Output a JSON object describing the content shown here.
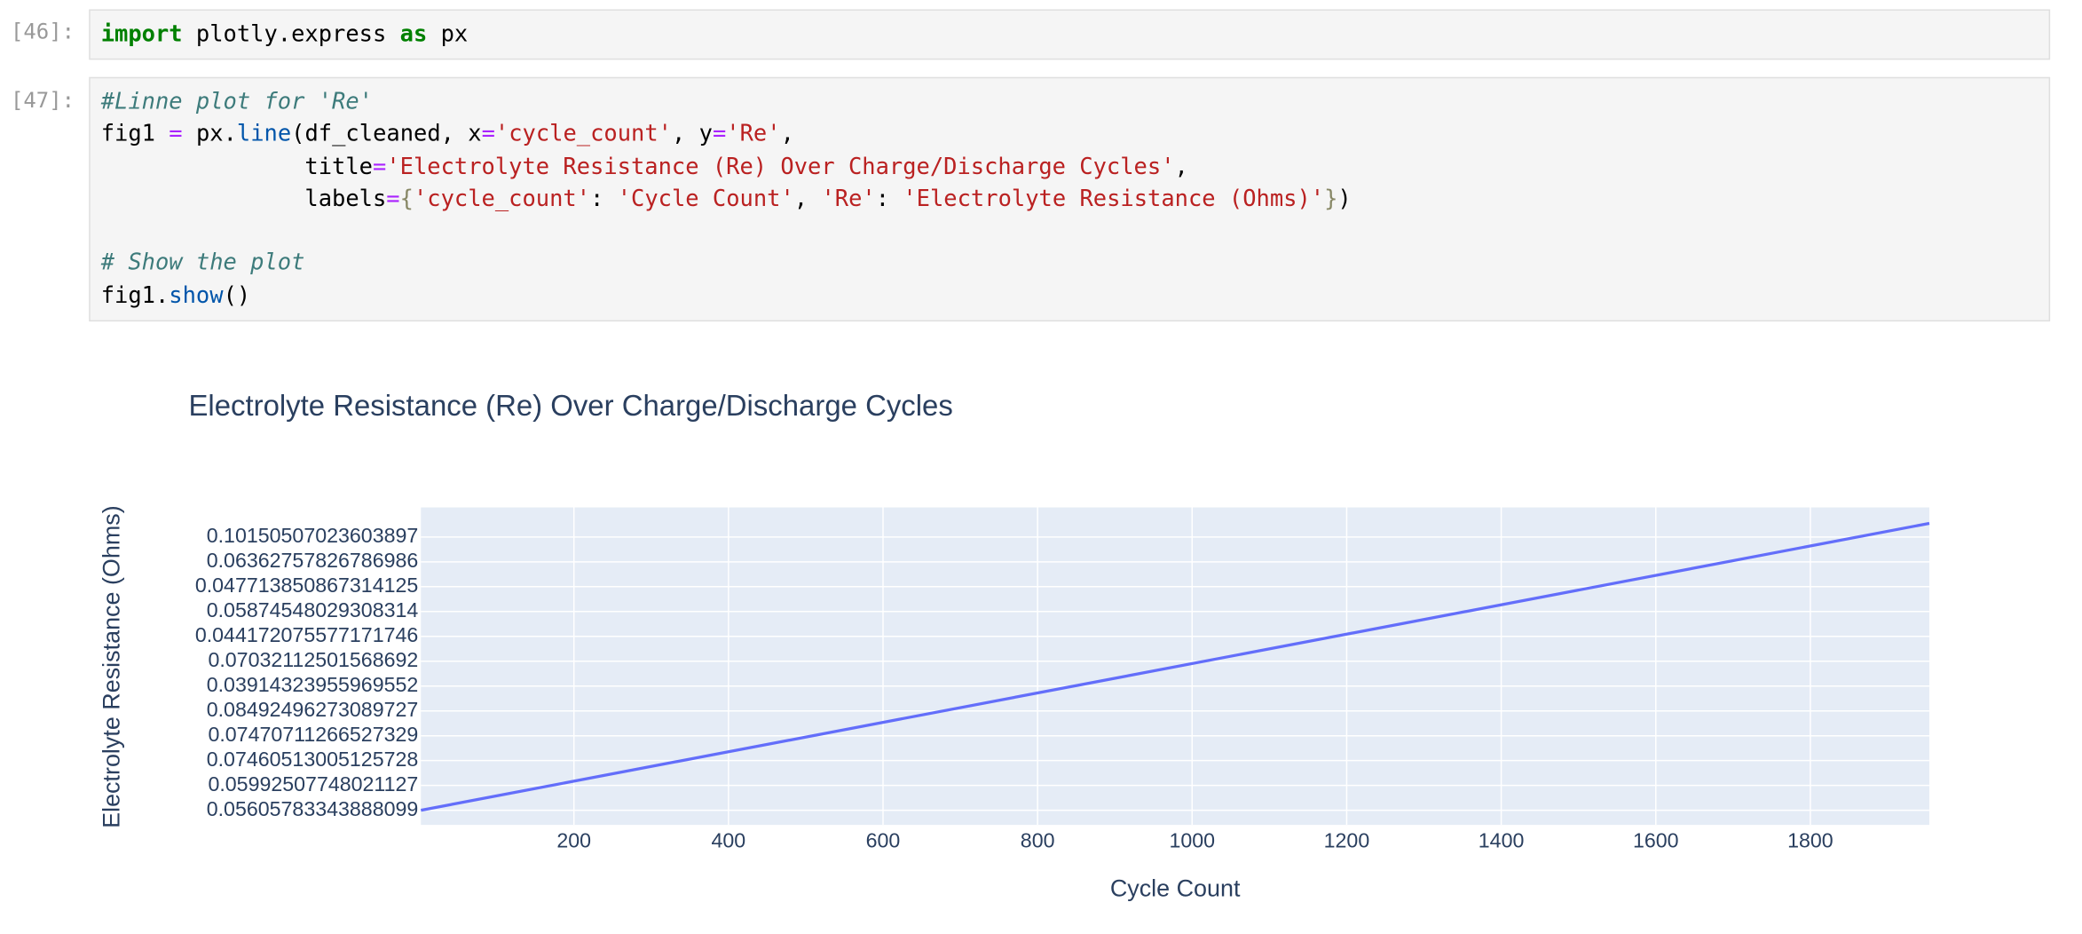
{
  "cells": [
    {
      "prompt": "[46]:",
      "lines": [
        [
          {
            "text": "import",
            "color": "#008000",
            "weight": "bold"
          },
          {
            "text": " plotly.express ",
            "color": "#000000"
          },
          {
            "text": "as",
            "color": "#008000",
            "weight": "bold"
          },
          {
            "text": " px",
            "color": "#000000"
          }
        ]
      ]
    },
    {
      "prompt": "[47]:",
      "lines": [
        [
          {
            "text": "#Linne plot for 'Re'",
            "color": "#3d7b7b",
            "style": "italic"
          }
        ],
        [
          {
            "text": "fig1 ",
            "color": "#000000"
          },
          {
            "text": "=",
            "color": "#aa22ff"
          },
          {
            "text": " px.",
            "color": "#000000"
          },
          {
            "text": "line",
            "color": "#0055aa"
          },
          {
            "text": "(df_cleaned, x",
            "color": "#000000"
          },
          {
            "text": "=",
            "color": "#aa22ff"
          },
          {
            "text": "'cycle_count'",
            "color": "#ba2121"
          },
          {
            "text": ", y",
            "color": "#000000"
          },
          {
            "text": "=",
            "color": "#aa22ff"
          },
          {
            "text": "'Re'",
            "color": "#ba2121"
          },
          {
            "text": ",",
            "color": "#000000"
          }
        ],
        [
          {
            "text": "               title",
            "color": "#000000"
          },
          {
            "text": "=",
            "color": "#aa22ff"
          },
          {
            "text": "'Electrolyte Resistance (Re) Over Charge/Discharge Cycles'",
            "color": "#ba2121"
          },
          {
            "text": ",",
            "color": "#000000"
          }
        ],
        [
          {
            "text": "               labels",
            "color": "#000000"
          },
          {
            "text": "=",
            "color": "#aa22ff"
          },
          {
            "text": "{",
            "color": "#888866"
          },
          {
            "text": "'cycle_count'",
            "color": "#ba2121"
          },
          {
            "text": ": ",
            "color": "#000000"
          },
          {
            "text": "'Cycle Count'",
            "color": "#ba2121"
          },
          {
            "text": ", ",
            "color": "#000000"
          },
          {
            "text": "'Re'",
            "color": "#ba2121"
          },
          {
            "text": ": ",
            "color": "#000000"
          },
          {
            "text": "'Electrolyte Resistance (Ohms)'",
            "color": "#ba2121"
          },
          {
            "text": "}",
            "color": "#888866"
          },
          {
            "text": ")",
            "color": "#000000"
          }
        ],
        [],
        [
          {
            "text": "# Show the plot",
            "color": "#3d7b7b",
            "style": "italic"
          }
        ],
        [
          {
            "text": "fig1.",
            "color": "#000000"
          },
          {
            "text": "show",
            "color": "#0055aa"
          },
          {
            "text": "()",
            "color": "#000000"
          }
        ]
      ]
    }
  ],
  "chart_data": {
    "type": "line",
    "title": "Electrolyte Resistance (Re) Over Charge/Discharge Cycles",
    "x_label": "Cycle Count",
    "y_label": "Electrolyte Resistance (Ohms)",
    "xlim": [
      2,
      1954
    ],
    "xticks": [
      200,
      400,
      600,
      800,
      1000,
      1200,
      1400,
      1600,
      1800
    ],
    "ylim": [
      -0.59,
      12.19
    ],
    "yticks": [
      {
        "value": 0,
        "label": "0.0560578334388809​9"
      },
      {
        "value": 1,
        "label": "0.05992507748021127"
      },
      {
        "value": 2,
        "label": "0.07460513005125728"
      },
      {
        "value": 3,
        "label": "0.07470711266527329"
      },
      {
        "value": 4,
        "label": "0.08492496273089727"
      },
      {
        "value": 5,
        "label": "0.03914323955969552"
      },
      {
        "value": 6,
        "label": "0.07032112501568692"
      },
      {
        "value": 7,
        "label": "0.044172075577171746"
      },
      {
        "value": 8,
        "label": "0.05874548029308314"
      },
      {
        "value": 9,
        "label": "0.047713850867314125"
      },
      {
        "value": 10,
        "label": "0.06362757826786986"
      },
      {
        "value": 11,
        "label": "0.10150507023603897"
      }
    ],
    "series": [
      {
        "color": "#636efa",
        "x": [
          2,
          1954
        ],
        "values": [
          0,
          11.55
        ]
      }
    ],
    "grid": true
  }
}
